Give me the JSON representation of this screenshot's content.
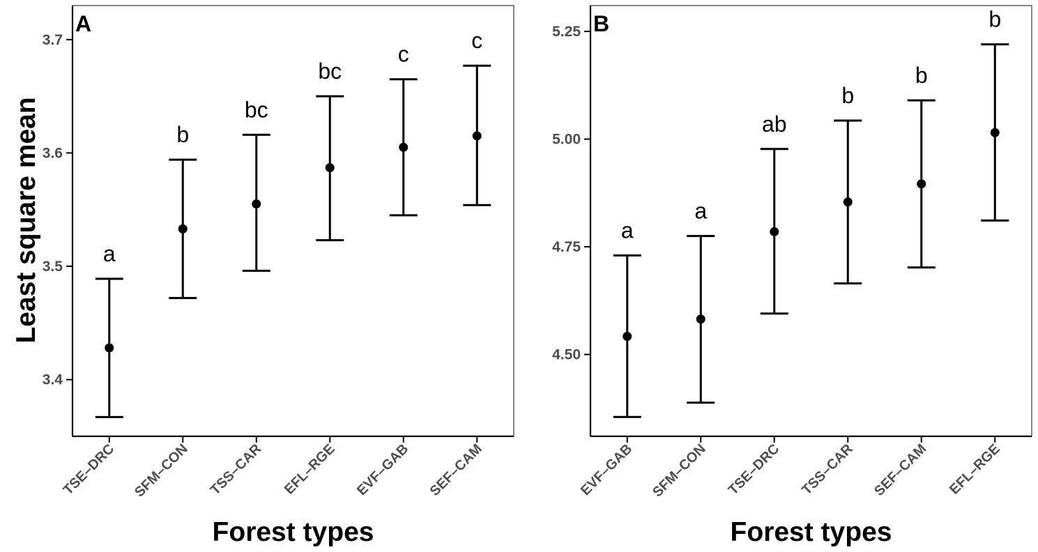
{
  "chart_data": [
    {
      "type": "scatter",
      "panel_label": "A",
      "xlabel": "Forest types",
      "ylabel": "Least square mean",
      "categories": [
        "TSE–DRC",
        "SFM–CON",
        "TSS–CAR",
        "EFL–RGE",
        "EVF–GAB",
        "SEF–CAM"
      ],
      "values": [
        3.428,
        3.533,
        3.555,
        3.587,
        3.605,
        3.615
      ],
      "lower": [
        3.367,
        3.472,
        3.496,
        3.523,
        3.545,
        3.554
      ],
      "upper": [
        3.489,
        3.594,
        3.616,
        3.65,
        3.665,
        3.677
      ],
      "letters": [
        "a",
        "b",
        "bc",
        "bc",
        "c",
        "c"
      ],
      "ylim": [
        3.35,
        3.73
      ],
      "yticks": [
        3.4,
        3.5,
        3.6,
        3.7
      ],
      "ytick_labels": [
        "3.4",
        "3.5",
        "3.6",
        "3.7"
      ],
      "grid": false
    },
    {
      "type": "scatter",
      "panel_label": "B",
      "xlabel": "Forest types",
      "ylabel": "",
      "categories": [
        "EVF–GAB",
        "SFM–CON",
        "TSE–DRC",
        "TSS–CAR",
        "SEF–CAM",
        "EFL–RGE"
      ],
      "values": [
        4.542,
        4.582,
        4.785,
        4.854,
        4.896,
        5.015
      ],
      "lower": [
        4.355,
        4.388,
        4.595,
        4.665,
        4.702,
        4.811
      ],
      "upper": [
        4.73,
        4.775,
        4.977,
        5.043,
        5.09,
        5.22
      ],
      "letters": [
        "a",
        "a",
        "ab",
        "b",
        "b",
        "b"
      ],
      "ylim": [
        4.31,
        5.31
      ],
      "yticks": [
        4.5,
        4.75,
        5.0,
        5.25
      ],
      "ytick_labels": [
        "4.50",
        "4.75",
        "5.00",
        "5.25"
      ],
      "grid": false
    }
  ]
}
